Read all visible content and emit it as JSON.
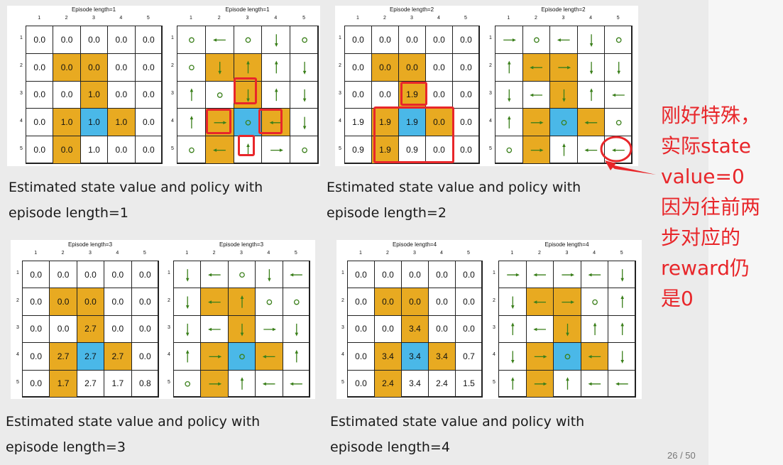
{
  "slide": {
    "page": "26 / 50"
  },
  "annotation": {
    "text": "刚好特殊，\n实际state\nvalue=0\n因为往前两\n步对应的\nreward仍\n是0"
  },
  "colors": {
    "target": "#4ab8e8",
    "forbidden": "#e8aa21",
    "arrow": "#3a7f1a",
    "highlight": "#e8262a"
  },
  "grid_layout": [
    [
      "w",
      "w",
      "w",
      "w",
      "w"
    ],
    [
      "w",
      "o",
      "o",
      "w",
      "w"
    ],
    [
      "w",
      "w",
      "o",
      "w",
      "w"
    ],
    [
      "w",
      "o",
      "b",
      "o",
      "w"
    ],
    [
      "w",
      "o",
      "w",
      "w",
      "w"
    ]
  ],
  "panels": [
    {
      "value_title": "Episode length=1",
      "policy_title": "Episode length=1",
      "caption_line1": "Estimated state value and policy with",
      "caption_line2": "episode length=1",
      "col_labels": [
        "1",
        "2",
        "3",
        "4",
        "5"
      ],
      "row_labels": [
        "1",
        "2",
        "3",
        "4",
        "5"
      ],
      "values": [
        [
          "0.0",
          "0.0",
          "0.0",
          "0.0",
          "0.0"
        ],
        [
          "0.0",
          "0.0",
          "0.0",
          "0.0",
          "0.0"
        ],
        [
          "0.0",
          "0.0",
          "1.0",
          "0.0",
          "0.0"
        ],
        [
          "0.0",
          "1.0",
          "1.0",
          "1.0",
          "0.0"
        ],
        [
          "0.0",
          "0.0",
          "1.0",
          "0.0",
          "0.0"
        ]
      ],
      "policy": [
        [
          "o",
          "left",
          "o",
          "down",
          "o"
        ],
        [
          "o",
          "down",
          "up",
          "up",
          "down"
        ],
        [
          "up",
          "o",
          "down",
          "up",
          "down"
        ],
        [
          "up",
          "right",
          "o",
          "left",
          "down"
        ],
        [
          "o",
          "left",
          "up",
          "right",
          "o"
        ]
      ]
    },
    {
      "value_title": "Episode length=2",
      "policy_title": "Episode length=2",
      "caption_line1": "Estimated state value and policy with",
      "caption_line2": "episode length=2",
      "col_labels": [
        "1",
        "2",
        "3",
        "4",
        "5"
      ],
      "row_labels": [
        "1",
        "2",
        "3",
        "4",
        "5"
      ],
      "values": [
        [
          "0.0",
          "0.0",
          "0.0",
          "0.0",
          "0.0"
        ],
        [
          "0.0",
          "0.0",
          "0.0",
          "0.0",
          "0.0"
        ],
        [
          "0.0",
          "0.0",
          "1.9",
          "0.0",
          "0.0"
        ],
        [
          "1.9",
          "1.9",
          "1.9",
          "0.0",
          "0.0"
        ],
        [
          "0.9",
          "1.9",
          "0.9",
          "0.0",
          "0.0"
        ]
      ],
      "policy": [
        [
          "right",
          "o",
          "left",
          "down",
          "o"
        ],
        [
          "up",
          "left",
          "right",
          "down",
          "down"
        ],
        [
          "down",
          "left",
          "down",
          "up",
          "left"
        ],
        [
          "up",
          "right",
          "o",
          "left",
          "o"
        ],
        [
          "o",
          "right",
          "up",
          "left",
          "left"
        ]
      ]
    },
    {
      "value_title": "Episode length=3",
      "policy_title": "Episode length=3",
      "caption_line1": "Estimated state value and policy with",
      "caption_line2": "episode length=3",
      "col_labels": [
        "1",
        "2",
        "3",
        "4",
        "5"
      ],
      "row_labels": [
        "1",
        "2",
        "3",
        "4",
        "5"
      ],
      "values": [
        [
          "0.0",
          "0.0",
          "0.0",
          "0.0",
          "0.0"
        ],
        [
          "0.0",
          "0.0",
          "0.0",
          "0.0",
          "0.0"
        ],
        [
          "0.0",
          "0.0",
          "2.7",
          "0.0",
          "0.0"
        ],
        [
          "0.0",
          "2.7",
          "2.7",
          "2.7",
          "0.0"
        ],
        [
          "0.0",
          "1.7",
          "2.7",
          "1.7",
          "0.8"
        ]
      ],
      "policy": [
        [
          "down",
          "left",
          "o",
          "down",
          "left"
        ],
        [
          "down",
          "left",
          "up",
          "o",
          "o"
        ],
        [
          "down",
          "left",
          "down",
          "right",
          "down"
        ],
        [
          "up",
          "right",
          "o",
          "left",
          "up"
        ],
        [
          "o",
          "right",
          "up",
          "left",
          "left"
        ]
      ]
    },
    {
      "value_title": "Episode length=4",
      "policy_title": "Episode length=4",
      "caption_line1": "Estimated state value and policy with",
      "caption_line2": "episode length=4",
      "col_labels": [
        "1",
        "2",
        "3",
        "4",
        "5"
      ],
      "row_labels": [
        "1",
        "2",
        "3",
        "4",
        "5"
      ],
      "values": [
        [
          "0.0",
          "0.0",
          "0.0",
          "0.0",
          "0.0"
        ],
        [
          "0.0",
          "0.0",
          "0.0",
          "0.0",
          "0.0"
        ],
        [
          "0.0",
          "0.0",
          "3.4",
          "0.0",
          "0.0"
        ],
        [
          "0.0",
          "3.4",
          "3.4",
          "3.4",
          "0.7"
        ],
        [
          "0.0",
          "2.4",
          "3.4",
          "2.4",
          "1.5"
        ]
      ],
      "policy": [
        [
          "right",
          "left",
          "right",
          "left",
          "down"
        ],
        [
          "down",
          "left",
          "right",
          "o",
          "up"
        ],
        [
          "up",
          "left",
          "down",
          "up",
          "up"
        ],
        [
          "down",
          "right",
          "o",
          "left",
          "down"
        ],
        [
          "up",
          "right",
          "up",
          "left",
          "left"
        ]
      ]
    }
  ]
}
